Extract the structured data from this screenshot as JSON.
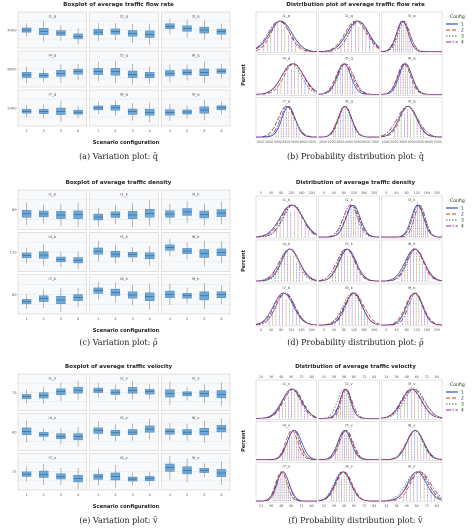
{
  "captions": {
    "a": "(a) Variation plot: q̄",
    "b": "(b) Probability distribution plot: q̄",
    "c": "(c) Variation plot: ρ̄",
    "d": "(d) Probability distribution plot: ρ̄",
    "e": "(e) Variation plot: v̄",
    "f": "(f) Probability distribution plot: v̄"
  },
  "titles": {
    "a": "Boxplot of average traffic flow rate",
    "b": "Distribution plot of average traffic flow rate",
    "c": "Boxplot of average traffic density",
    "d": "Distribution of average traffic density",
    "e": "Boxplot of average traffic velocity",
    "f": "Distribution of average traffic velocity"
  },
  "axis": {
    "xlabel": "Scenario configuration",
    "ylabel": "Percent",
    "box_x_ticks": [
      "1",
      "2",
      "3",
      "4"
    ]
  },
  "legend": {
    "title": "Config",
    "items": [
      {
        "label": "1",
        "color": "#1f3fbf",
        "dash": ""
      },
      {
        "label": "2",
        "color": "#c0392b",
        "dash": "4,2"
      },
      {
        "label": "3",
        "color": "#2e8b2e",
        "dash": "1.5,1.5"
      },
      {
        "label": "4",
        "color": "#a020a0",
        "dash": "5,1.5,1.5,1.5"
      }
    ]
  },
  "colors": {
    "box": "#6ea8d8",
    "box_edge": "#3d7fb8",
    "grid": "#e3e3e3",
    "panel_bg": "#f7f9fb"
  },
  "flow": {
    "box_cells": [
      "l1_q",
      "l2_q",
      "l3_q",
      "l4_q",
      "l5_q",
      "l6_q",
      "l7_q",
      "l8_q",
      "l9_q"
    ],
    "box_y_ticks": [
      "4000",
      "3000",
      "2500",
      "6000",
      "4000",
      "3000",
      "2400",
      "2200",
      "2000"
    ],
    "dist_cells": [
      "l1_q",
      "l2_q",
      "l3_q",
      "l4_q",
      "l5_q",
      "l6_q",
      "l7_q",
      "l8_q",
      "l9_q"
    ],
    "dist_x_ticks": [
      "1000",
      "2000",
      "3000",
      "4000",
      "5000",
      "6000",
      "7000"
    ]
  },
  "density": {
    "box_cells": [
      "l1_k",
      "l2_k",
      "l3_k",
      "l4_k",
      "l5_k",
      "l6_k",
      "l7_k",
      "l8_k",
      "l9_k"
    ],
    "box_y_ticks": [
      "80",
      "70",
      "60",
      "110",
      "100",
      "90",
      "60",
      "50",
      "40"
    ],
    "dist_cells": [
      "l1_k",
      "l2_k",
      "l3_k",
      "l4_k",
      "l5_k",
      "l6_k",
      "l7_k",
      "l8_k",
      "l9_k"
    ],
    "dist_x_ticks": [
      "0",
      "40",
      "80",
      "120",
      "160",
      "200"
    ]
  },
  "velocity": {
    "box_cells": [
      "l1_v",
      "l2_v",
      "l3_v",
      "l4_v",
      "l5_v",
      "l6_v",
      "l7_v",
      "l8_v",
      "l9_v"
    ],
    "box_y_ticks": [
      "75",
      "70",
      "65",
      "40",
      "35",
      "30",
      "75",
      "70",
      "65"
    ],
    "dist_cells": [
      "l1_v",
      "l2_v",
      "l3_v",
      "l4_v",
      "l5_v",
      "l6_v",
      "l7_v",
      "l8_v",
      "l9_v"
    ],
    "dist_x_ticks": [
      "24",
      "36",
      "48",
      "60",
      "72",
      "84"
    ]
  }
}
